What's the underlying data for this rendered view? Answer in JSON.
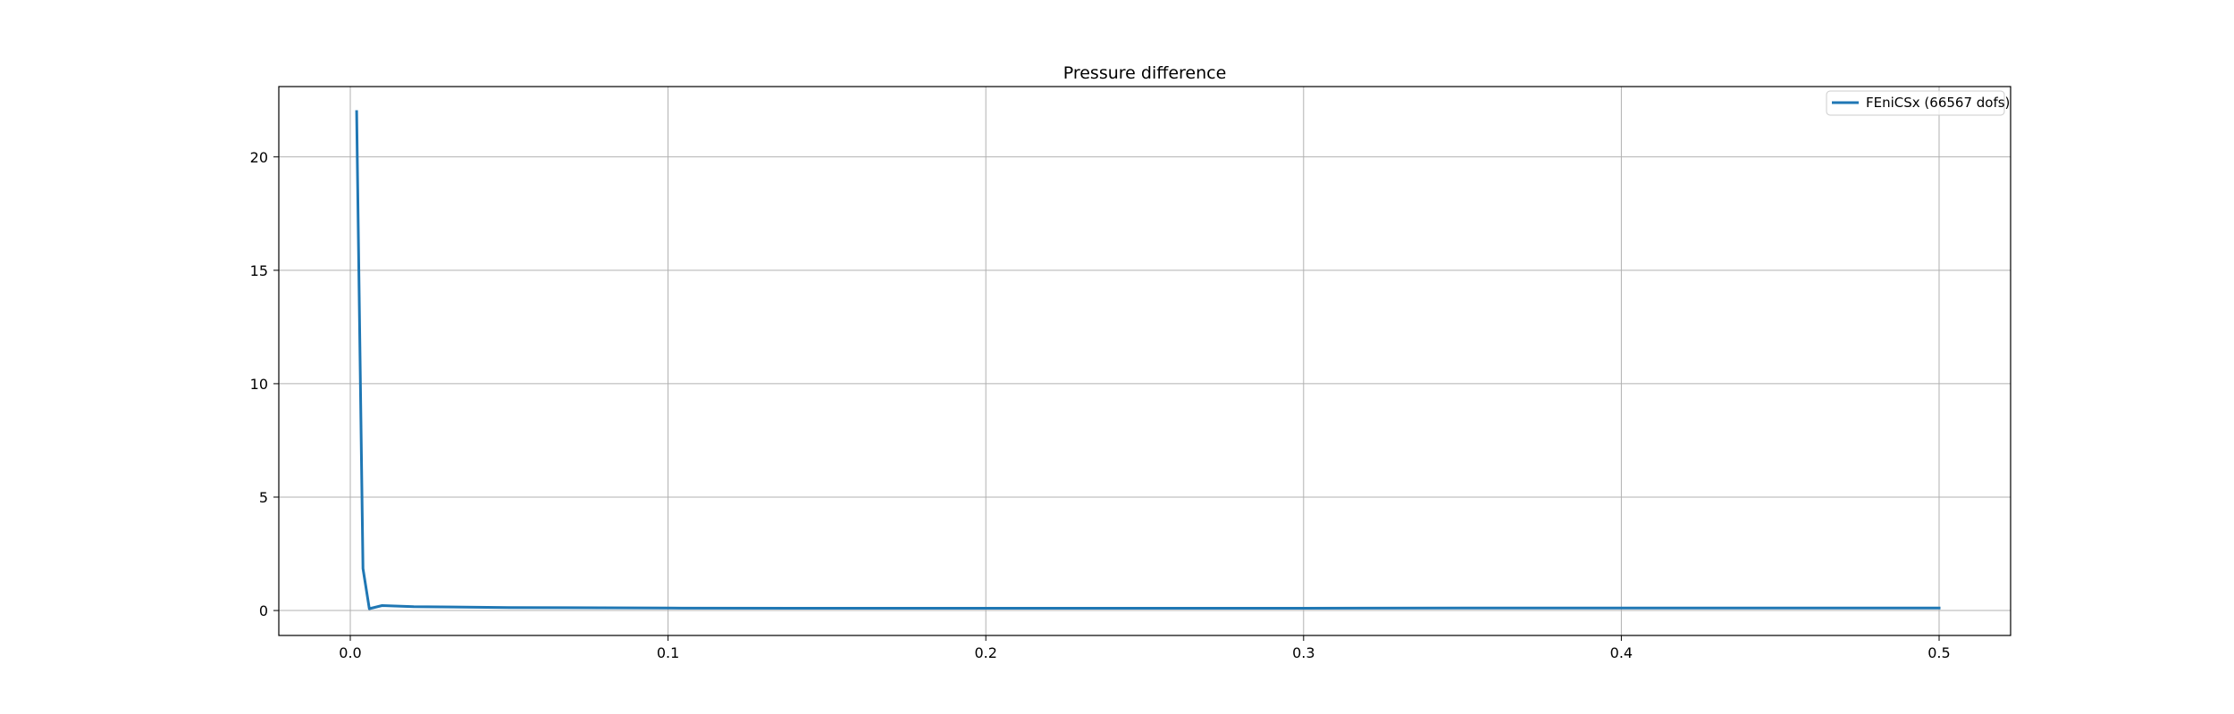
{
  "chart_data": {
    "type": "line",
    "title": "Pressure difference",
    "xlabel": "",
    "ylabel": "",
    "xlim": [
      -0.0225,
      0.5225
    ],
    "ylim": [
      -1.1,
      23.1
    ],
    "xticks": [
      0.0,
      0.1,
      0.2,
      0.3,
      0.4,
      0.5
    ],
    "xtick_labels": [
      "0.0",
      "0.1",
      "0.2",
      "0.3",
      "0.4",
      "0.5"
    ],
    "yticks": [
      0,
      5,
      10,
      15,
      20
    ],
    "ytick_labels": [
      "0",
      "5",
      "10",
      "15",
      "20"
    ],
    "grid": true,
    "legend_position": "top-right",
    "series": [
      {
        "name": "FEniCSx (66567 dofs)",
        "color": "#1f77b4",
        "x": [
          0.002,
          0.004,
          0.006,
          0.01,
          0.02,
          0.05,
          0.1,
          0.15,
          0.2,
          0.25,
          0.3,
          0.35,
          0.4,
          0.45,
          0.5
        ],
        "y": [
          22.0,
          1.85,
          0.08,
          0.22,
          0.17,
          0.13,
          0.11,
          0.1,
          0.1,
          0.1,
          0.1,
          0.11,
          0.11,
          0.11,
          0.11
        ]
      }
    ]
  }
}
